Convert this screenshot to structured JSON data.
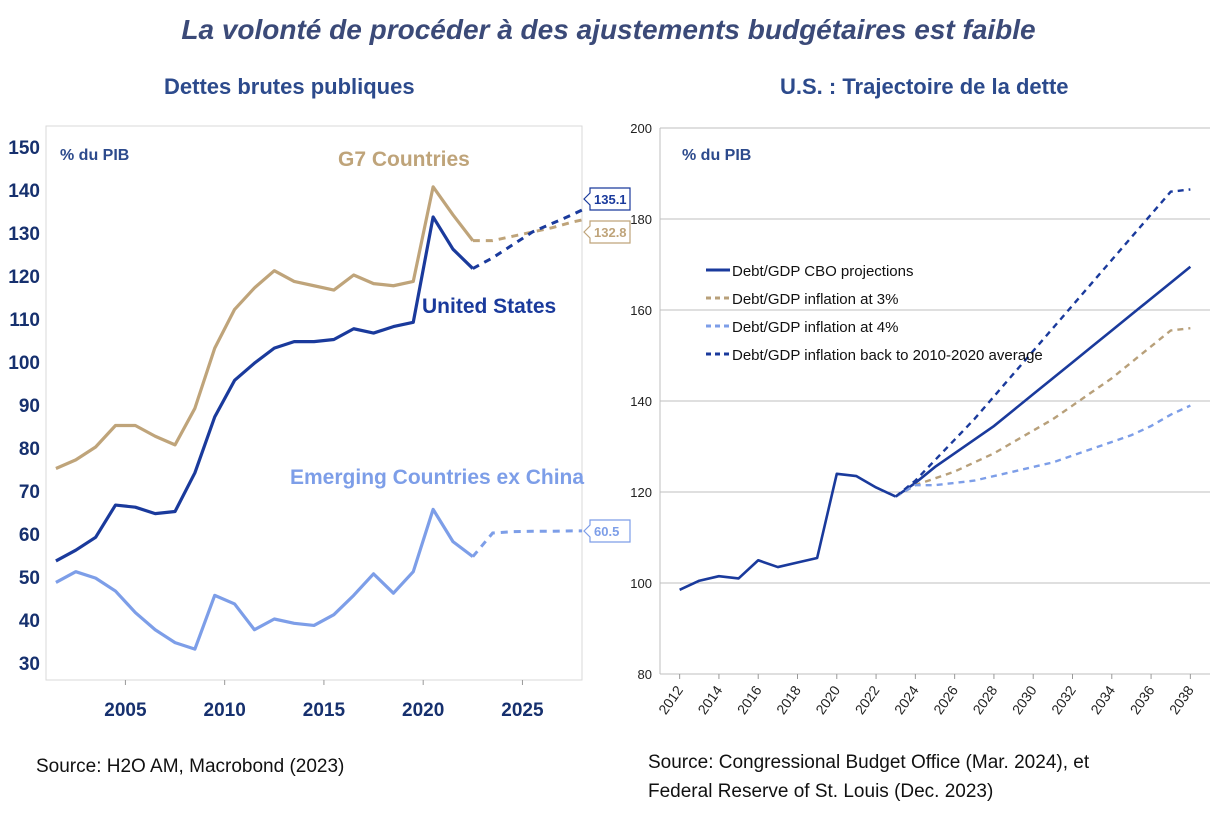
{
  "title": "La volonté de procéder à des ajustements budgétaires est faible",
  "left": {
    "title": "Dettes brutes publiques",
    "source": "Source: H2O AM, Macrobond (2023)"
  },
  "right": {
    "title": "U.S. : Trajectoire de la dette",
    "source_line1": "Source: Congressional Budget Office (Mar. 2024), et",
    "source_line2": "Federal Reserve of St. Louis (Dec. 2023)"
  },
  "chart_data": [
    {
      "type": "line",
      "title": "Dettes brutes publiques",
      "unit_label": "% du PIB",
      "xlim": [
        2001,
        2028
      ],
      "ylim": [
        30,
        150
      ],
      "x_ticks": [
        2005,
        2010,
        2015,
        2020,
        2025
      ],
      "y_ticks": [
        30,
        40,
        50,
        60,
        70,
        80,
        90,
        100,
        110,
        120,
        130,
        140,
        150
      ],
      "grid": false,
      "series": [
        {
          "name": "G7 Countries",
          "color": "#bfa47a",
          "x": [
            2001.5,
            2002.5,
            2003.5,
            2004.5,
            2005.5,
            2006.5,
            2007.5,
            2008.5,
            2009.5,
            2010.5,
            2011.5,
            2012.5,
            2013.5,
            2014.5,
            2015.5,
            2016.5,
            2017.5,
            2018.5,
            2019.5,
            2020.5,
            2021.5,
            2022.5
          ],
          "values": [
            75,
            77,
            80,
            85,
            85,
            82.5,
            80.5,
            89,
            103,
            112,
            117,
            121,
            118.5,
            117.5,
            116.5,
            120,
            118,
            117.5,
            118.5,
            140.5,
            134,
            128
          ],
          "projection": {
            "x": [
              2022.5,
              2023.5,
              2024.5,
              2025.5,
              2026.5,
              2027.5,
              2028
            ],
            "values": [
              128,
              128,
              129,
              130,
              131,
              132.3,
              132.8
            ]
          },
          "end_label": "132.8"
        },
        {
          "name": "United States",
          "color": "#1a3a9c",
          "x": [
            2001.5,
            2002.5,
            2003.5,
            2004.5,
            2005.5,
            2006.5,
            2007.5,
            2008.5,
            2009.5,
            2010.5,
            2011.5,
            2012.5,
            2013.5,
            2014.5,
            2015.5,
            2016.5,
            2017.5,
            2018.5,
            2019.5,
            2020.5,
            2021.5,
            2022.5
          ],
          "values": [
            53.5,
            56,
            59,
            66.5,
            66,
            64.5,
            65,
            74,
            87,
            95.5,
            99.5,
            103,
            104.5,
            104.5,
            105,
            107.5,
            106.5,
            108,
            109,
            133.5,
            126,
            121.5
          ],
          "projection": {
            "x": [
              2022.5,
              2023.5,
              2024.5,
              2025.5,
              2026.5,
              2027.5,
              2028
            ],
            "values": [
              121.5,
              124,
              127,
              130,
              132,
              134,
              135.1
            ]
          },
          "end_label": "135.1"
        },
        {
          "name": "Emerging Countries ex China",
          "color": "#7d9ee8",
          "x": [
            2001.5,
            2002.5,
            2003.5,
            2004.5,
            2005.5,
            2006.5,
            2007.5,
            2008.5,
            2009.5,
            2010.5,
            2011.5,
            2012.5,
            2013.5,
            2014.5,
            2015.5,
            2016.5,
            2017.5,
            2018.5,
            2019.5,
            2020.5,
            2021.5,
            2022.5
          ],
          "values": [
            48.5,
            51,
            49.5,
            46.5,
            41.5,
            37.5,
            34.5,
            33,
            45.5,
            43.5,
            37.5,
            40,
            39,
            38.5,
            41,
            45.5,
            50.5,
            46,
            51,
            65.5,
            58,
            54.5
          ],
          "projection": {
            "x": [
              2022.5,
              2023.5,
              2024.5,
              2025.5,
              2026.5,
              2027.5,
              2028
            ],
            "values": [
              54.5,
              60,
              60.3,
              60.4,
              60.4,
              60.5,
              60.5
            ]
          },
          "end_label": "60.5"
        }
      ]
    },
    {
      "type": "line",
      "title": "U.S. : Trajectoire de la dette",
      "unit_label": "% du PIB",
      "xlim": [
        2011,
        2039
      ],
      "ylim": [
        80,
        200
      ],
      "x_ticks": [
        2012,
        2014,
        2016,
        2018,
        2020,
        2022,
        2024,
        2026,
        2028,
        2030,
        2032,
        2034,
        2036,
        2038
      ],
      "y_ticks": [
        80,
        100,
        120,
        140,
        160,
        180,
        200
      ],
      "grid": true,
      "legend": "center-left",
      "history": {
        "x": [
          2012,
          2013,
          2014,
          2015,
          2016,
          2017,
          2018,
          2019,
          2020,
          2021,
          2022,
          2023
        ],
        "values": [
          98.5,
          100.5,
          101.5,
          101,
          105,
          103.5,
          104.5,
          105.5,
          124,
          123.5,
          121,
          119
        ]
      },
      "series": [
        {
          "name": "Debt/GDP CBO projections",
          "color": "#1a3a9c",
          "style": "solid",
          "x": [
            2023,
            2024,
            2025,
            2026,
            2027,
            2028,
            2029,
            2030,
            2031,
            2032,
            2033,
            2034,
            2035,
            2036,
            2037,
            2038
          ],
          "values": [
            119,
            122,
            125.5,
            128.5,
            131.5,
            134.5,
            138,
            141.5,
            145,
            148.5,
            152,
            155.5,
            159,
            162.5,
            166,
            169.5
          ]
        },
        {
          "name": "Debt/GDP inflation at 3%",
          "color": "#b8a07a",
          "style": "dashed",
          "x": [
            2023,
            2024,
            2025,
            2026,
            2027,
            2028,
            2029,
            2030,
            2031,
            2032,
            2033,
            2034,
            2035,
            2036,
            2037,
            2038
          ],
          "values": [
            119,
            121.5,
            123,
            124.5,
            126.5,
            128.5,
            131,
            133.5,
            136,
            139,
            142,
            145,
            148.5,
            152,
            155.5,
            156
          ]
        },
        {
          "name": "Debt/GDP inflation at 4%",
          "color": "#7d9ee8",
          "style": "dashed",
          "x": [
            2023,
            2024,
            2025,
            2026,
            2027,
            2028,
            2029,
            2030,
            2031,
            2032,
            2033,
            2034,
            2035,
            2036,
            2037,
            2038
          ],
          "values": [
            119,
            121.5,
            121.5,
            122,
            122.5,
            123.5,
            124.5,
            125.5,
            126.5,
            128,
            129.5,
            131,
            132.5,
            134.5,
            137,
            139
          ]
        },
        {
          "name": "Debt/GDP inflation back to 2010-2020 average",
          "color": "#1a3a9c",
          "style": "dashed",
          "x": [
            2023,
            2024,
            2025,
            2026,
            2027,
            2028,
            2029,
            2030,
            2031,
            2032,
            2033,
            2034,
            2035,
            2036,
            2037,
            2038
          ],
          "values": [
            119,
            122.5,
            127,
            131.5,
            136,
            141,
            146,
            151,
            156,
            161,
            166,
            171,
            176,
            181,
            186,
            186.5
          ]
        }
      ]
    }
  ]
}
